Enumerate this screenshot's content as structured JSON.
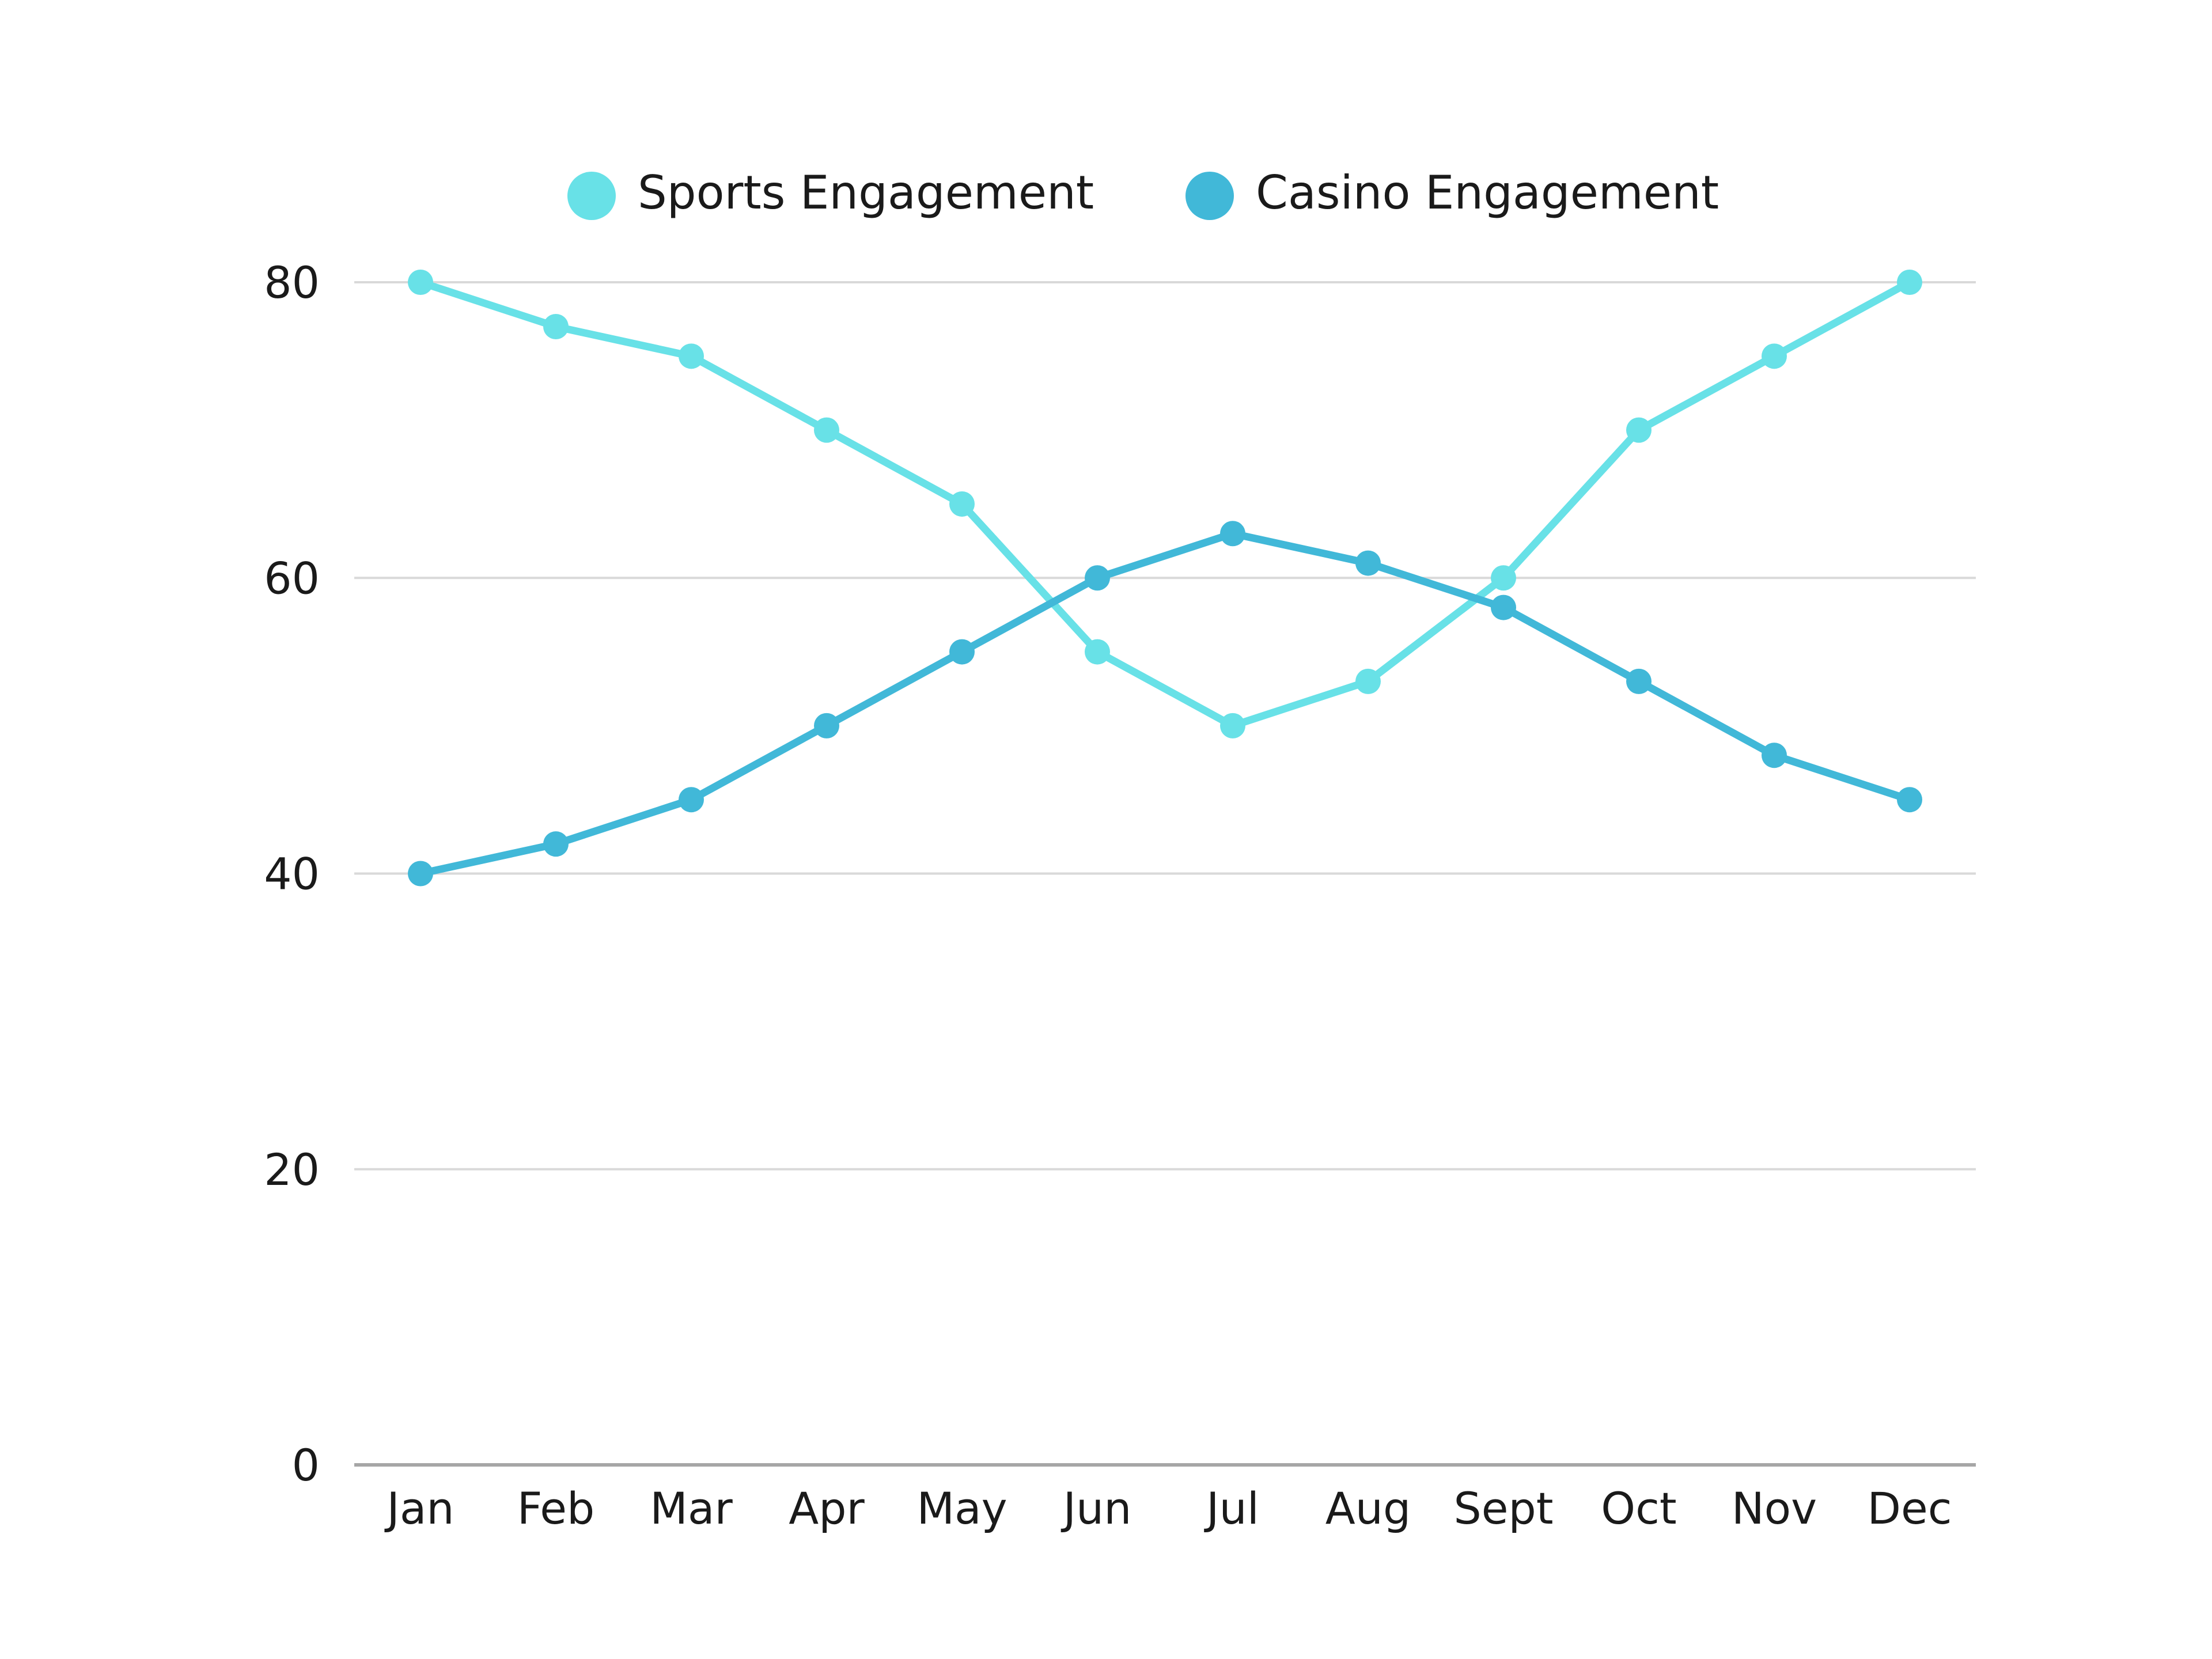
{
  "chart_data": {
    "type": "line",
    "title": "",
    "xlabel": "",
    "ylabel": "",
    "categories": [
      "Jan",
      "Feb",
      "Mar",
      "Apr",
      "May",
      "Jun",
      "Jul",
      "Aug",
      "Sept",
      "Oct",
      "Nov",
      "Dec"
    ],
    "series": [
      {
        "name": "Sports Engagement",
        "color": "#68e1e7",
        "values": [
          80,
          77,
          75,
          70,
          65,
          55,
          50,
          53,
          60,
          70,
          75,
          80
        ]
      },
      {
        "name": "Casino Engagement",
        "color": "#41b8d8",
        "values": [
          40,
          42,
          45,
          50,
          55,
          60,
          63,
          61,
          58,
          53,
          48,
          45
        ]
      }
    ],
    "ylim": [
      0,
      80
    ],
    "yticks": [
      0,
      20,
      40,
      60,
      80
    ],
    "grid": true,
    "legend_position": "top-center"
  }
}
